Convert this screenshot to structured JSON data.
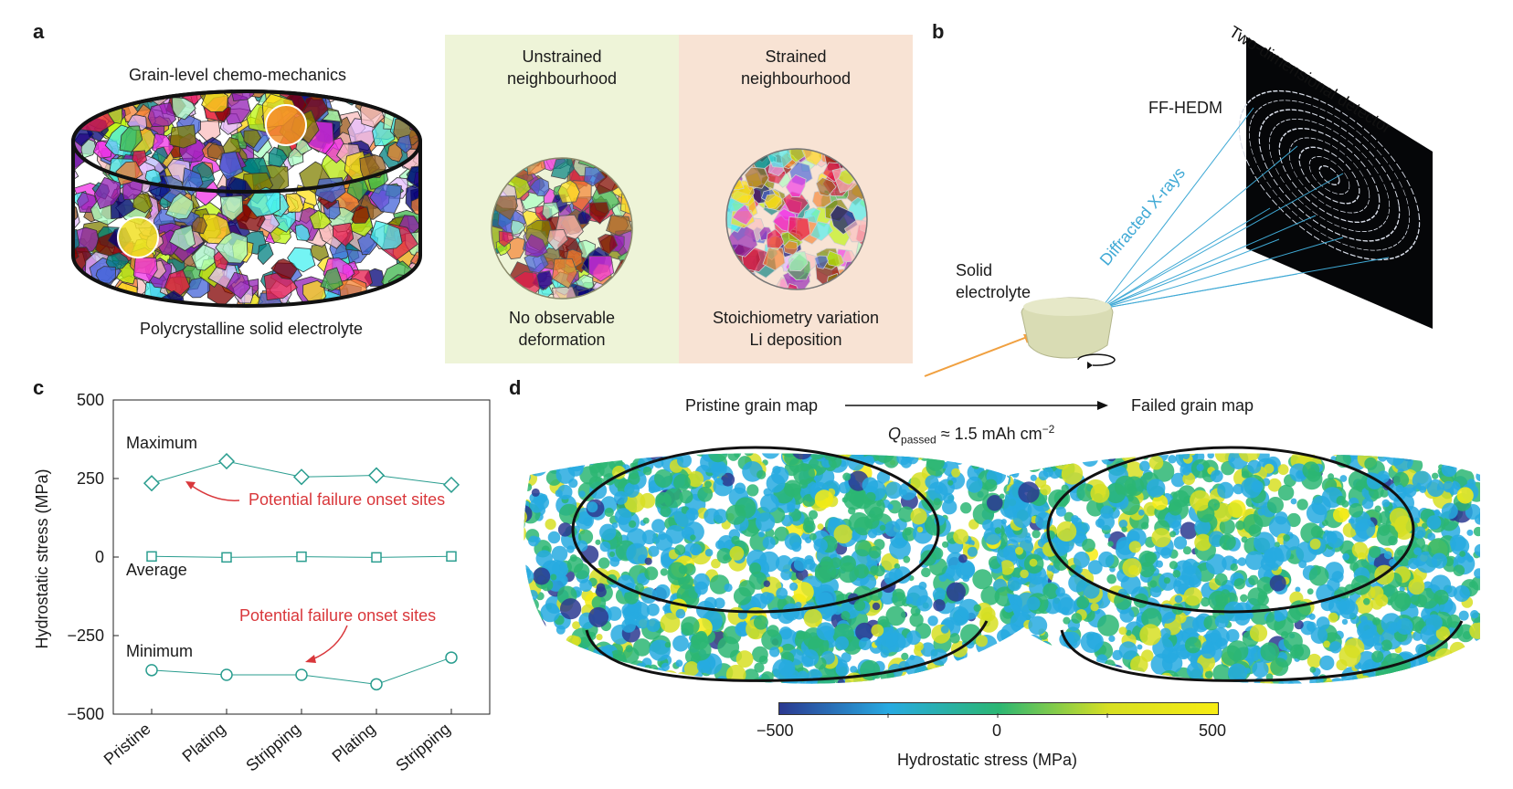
{
  "panel_a": {
    "label": "a",
    "title": "Grain-level chemo-mechanics",
    "caption": "Polycrystalline solid electrolyte",
    "unstrained": {
      "title_1": "Unstrained",
      "title_2": "neighbourhood",
      "caption_1": "No observable",
      "caption_2": "deformation"
    },
    "strained": {
      "title_1": "Strained",
      "title_2": "neighbourhood",
      "caption_1": "Stoichiometry variation",
      "caption_2": "Li deposition"
    }
  },
  "panel_b": {
    "label": "b",
    "technique": "FF-HEDM",
    "detector": "Two-dimensional detector",
    "rays": "Diffracted X-rays",
    "sample_1": "Solid",
    "sample_2": "electrolyte"
  },
  "panel_c": {
    "label": "c",
    "annotation": "Potential failure onset sites",
    "series_labels": {
      "max": "Maximum",
      "avg": "Average",
      "min": "Minimum"
    }
  },
  "panel_d": {
    "label": "d",
    "left_title": "Pristine grain map",
    "right_title": "Failed grain map",
    "q_symbol": "Q",
    "q_sub": "passed",
    "q_rest": " ≈ 1.5 mAh cm",
    "q_sup": "−2",
    "colorbar_label": "Hydrostatic stress (MPa)",
    "colorbar_ticks": [
      "−500",
      "0",
      "500"
    ],
    "colors": [
      "#2b3990",
      "#27aae1",
      "#2bb673",
      "#d7df23",
      "#f7ec13"
    ]
  },
  "chart_data": {
    "type": "line",
    "ylabel": "Hydrostatic stress (MPa)",
    "categories": [
      "Pristine",
      "Plating",
      "Stripping",
      "Plating",
      "Stripping"
    ],
    "ylim": [
      -500,
      500
    ],
    "yticks": [
      "500",
      "250",
      "0",
      "−250",
      "−500"
    ],
    "yticks_values": [
      500,
      250,
      0,
      -250,
      -500
    ],
    "grid": false,
    "series": [
      {
        "name": "Maximum",
        "marker": "diamond",
        "values": [
          235,
          305,
          255,
          260,
          230
        ]
      },
      {
        "name": "Average",
        "marker": "square",
        "values": [
          2,
          -1,
          1,
          -1,
          2
        ]
      },
      {
        "name": "Minimum",
        "marker": "circle",
        "values": [
          -360,
          -375,
          -375,
          -405,
          -320
        ]
      }
    ],
    "color": "#2a9d8f"
  }
}
